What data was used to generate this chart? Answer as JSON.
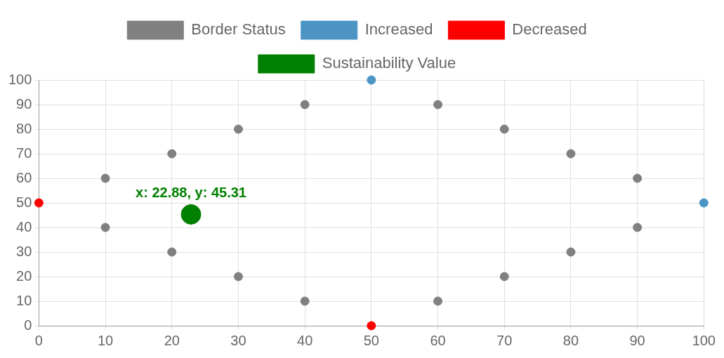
{
  "chart_data": {
    "type": "scatter",
    "xlim": [
      0,
      100
    ],
    "ylim": [
      0,
      100
    ],
    "xticks": [
      0,
      10,
      20,
      30,
      40,
      50,
      60,
      70,
      80,
      90,
      100
    ],
    "yticks": [
      0,
      10,
      20,
      30,
      40,
      50,
      60,
      70,
      80,
      90,
      100
    ],
    "grid": true,
    "legend": "top",
    "marker": "circle",
    "series": [
      {
        "name": "Border Status",
        "color": "#808080",
        "x": [
          10,
          20,
          30,
          40,
          60,
          70,
          80,
          90,
          90,
          80,
          70,
          60,
          40,
          30,
          20,
          10
        ],
        "values": [
          60,
          70,
          80,
          90,
          90,
          80,
          70,
          60,
          40,
          30,
          20,
          10,
          10,
          20,
          30,
          40
        ]
      },
      {
        "name": "Increased",
        "color": "#4b94c4",
        "x": [
          50,
          100
        ],
        "values": [
          100,
          50
        ]
      },
      {
        "name": "Decreased",
        "color": "#ff0000",
        "x": [
          0,
          50
        ],
        "values": [
          50,
          0
        ]
      },
      {
        "name": "Sustainability Value",
        "color": "#008000",
        "x": [
          22.88
        ],
        "values": [
          45.31
        ]
      }
    ],
    "annotations": [
      {
        "text": "x: 22.88, y: 45.31",
        "x": 22.88,
        "y": 45.31
      }
    ]
  }
}
